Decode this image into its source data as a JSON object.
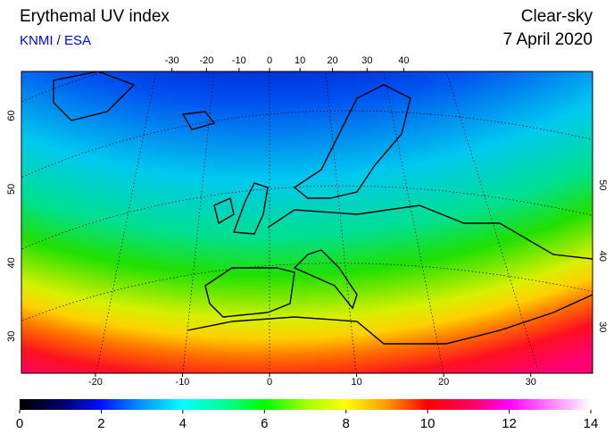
{
  "header": {
    "title": "Erythemal UV index",
    "source": "KNMI / ESA",
    "condition": "Clear-sky",
    "date": "7 April 2020"
  },
  "map": {
    "top_lon_ticks": [
      -30,
      -20,
      -10,
      0,
      10,
      20,
      30,
      40
    ],
    "bottom_lon_ticks": [
      -20,
      -10,
      0,
      10,
      20,
      30
    ],
    "bottom_lon_lim": [
      -28.5,
      37.1
    ],
    "left_lat_ticks": [
      60,
      50,
      40,
      30
    ],
    "left_lat_lim": [
      25,
      66
    ],
    "right_lat_ticks": [
      50,
      40,
      30
    ],
    "right_lat_lim": [
      23.5,
      66
    ]
  },
  "colorbar": {
    "lim": [
      0,
      14
    ],
    "ticks": [
      0,
      2,
      4,
      6,
      8,
      10,
      12,
      14
    ]
  }
}
